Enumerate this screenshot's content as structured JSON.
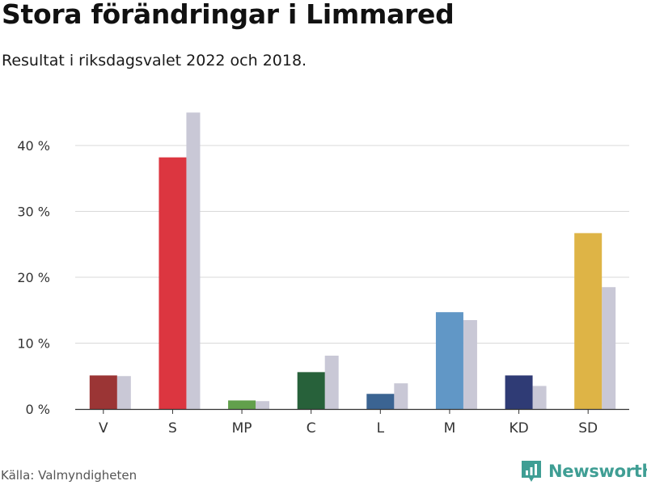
{
  "header": {
    "title": "Stora förändringar i Limmared",
    "subtitle": "Resultat i riksdagsvalet 2022 och 2018."
  },
  "footer": {
    "source": "Källa: Valmyndigheten",
    "brand": "Newsworthy",
    "brand_color": "#3f9e94"
  },
  "chart_data": {
    "type": "bar",
    "categories": [
      "V",
      "S",
      "MP",
      "C",
      "L",
      "M",
      "KD",
      "SD"
    ],
    "series": [
      {
        "values": [
          5.1,
          38.2,
          1.3,
          5.6,
          2.3,
          14.7,
          5.1,
          26.7
        ],
        "colors": [
          "#9b3535",
          "#dc3640",
          "#62a04c",
          "#27613a",
          "#3b6492",
          "#6197c6",
          "#2f3b75",
          "#deb446"
        ]
      },
      {
        "values": [
          5.0,
          45.0,
          1.2,
          8.1,
          3.9,
          13.5,
          3.5,
          18.5
        ],
        "color": "#c9c8d6"
      }
    ],
    "yticks": [
      {
        "value": 0,
        "label": "0 %"
      },
      {
        "value": 10,
        "label": "10 %"
      },
      {
        "value": 20,
        "label": "20 %"
      },
      {
        "value": 30,
        "label": "30 %"
      },
      {
        "value": 40,
        "label": "40 %"
      }
    ],
    "ylim": [
      0,
      45
    ],
    "grid": true,
    "legend": "none"
  }
}
